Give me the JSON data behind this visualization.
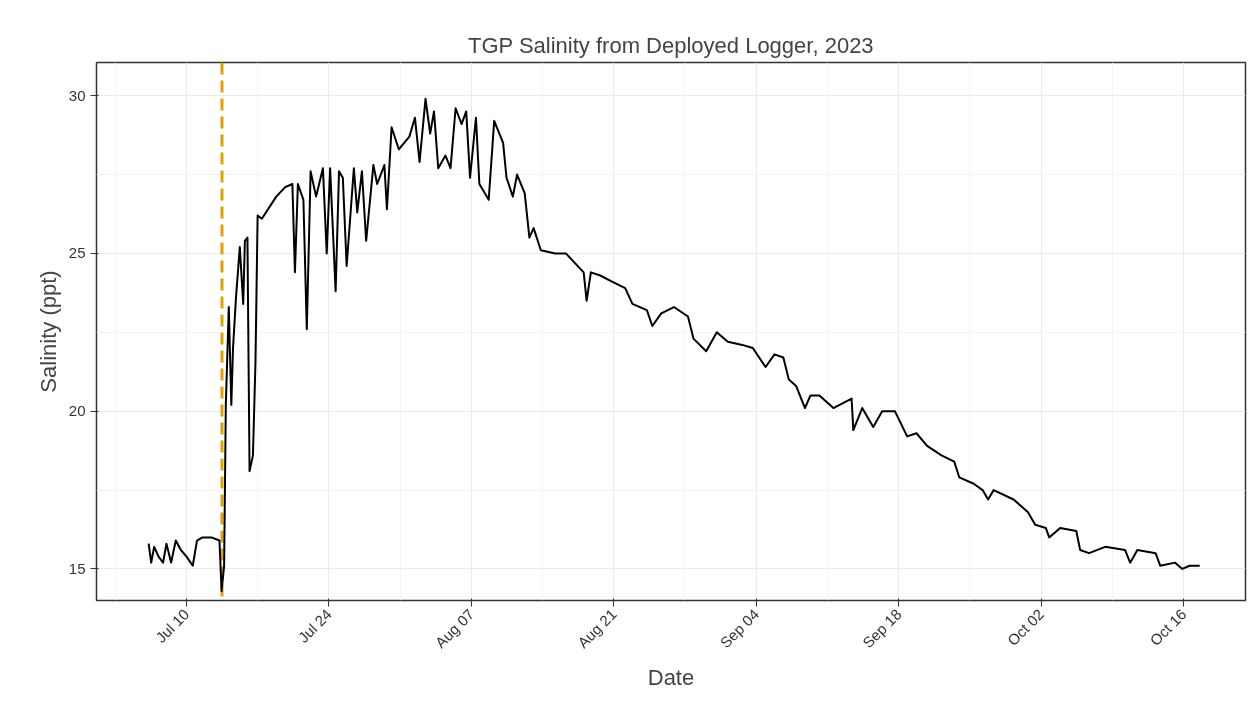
{
  "chart_data": {
    "type": "line",
    "title": "TGP Salinity from Deployed Logger, 2023",
    "xlabel": "Date",
    "ylabel": "Salinity (ppt)",
    "x": [
      "2023-07-06T07:00",
      "2023-07-06T13:00",
      "2023-07-06T20:00",
      "2023-07-07T06:00",
      "2023-07-07T17:00",
      "2023-07-08T01:00",
      "2023-07-08T12:00",
      "2023-07-08T23:00",
      "2023-07-09T11:00",
      "2023-07-10T00:00",
      "2023-07-10T15:00",
      "2023-07-11T01:00",
      "2023-07-11T14:00",
      "2023-07-12T11:00",
      "2023-07-13T06:00",
      "2023-07-13T11:00",
      "2023-07-13T17:00",
      "2023-07-13T21:00",
      "2023-07-14T04:00",
      "2023-07-14T10:00",
      "2023-07-14T14:00",
      "2023-07-14T21:00",
      "2023-07-15T06:00",
      "2023-07-15T14:00",
      "2023-07-15T18:00",
      "2023-07-16T00:00",
      "2023-07-16T05:00",
      "2023-07-16T13:00",
      "2023-07-16T19:00",
      "2023-07-17T00:00",
      "2023-07-17T10:00",
      "2023-07-18T20:00",
      "2023-07-19T17:00",
      "2023-07-20T10:00",
      "2023-07-20T16:00",
      "2023-07-20T23:00",
      "2023-07-21T12:00",
      "2023-07-21T20:00",
      "2023-07-22T05:00",
      "2023-07-22T18:00",
      "2023-07-23T10:00",
      "2023-07-23T19:00",
      "2023-07-24T03:00",
      "2023-07-24T16:00",
      "2023-07-25T00:00",
      "2023-07-25T09:00",
      "2023-07-25T18:00",
      "2023-07-26T11:00",
      "2023-07-26T19:00",
      "2023-07-27T06:00",
      "2023-07-27T16:00",
      "2023-07-28T09:00",
      "2023-07-28T18:00",
      "2023-07-29T11:00",
      "2023-07-29T17:00",
      "2023-07-30T04:00",
      "2023-07-30T21:00",
      "2023-07-31T22:00",
      "2023-08-01T11:00",
      "2023-08-01T22:00",
      "2023-08-02T12:00",
      "2023-08-02T23:00",
      "2023-08-03T08:00",
      "2023-08-03T18:00",
      "2023-08-04T11:00",
      "2023-08-04T23:00",
      "2023-08-05T11:00",
      "2023-08-06T01:00",
      "2023-08-06T12:00",
      "2023-08-06T21:00",
      "2023-08-07T11:00",
      "2023-08-07T19:00",
      "2023-08-08T17:00",
      "2023-08-09T06:00",
      "2023-08-10T03:00",
      "2023-08-10T11:00",
      "2023-08-11T02:00",
      "2023-08-11T12:00",
      "2023-08-12T06:00",
      "2023-08-12T17:00",
      "2023-08-13T03:00",
      "2023-08-13T20:00",
      "2023-08-15T06:00",
      "2023-08-16T07:00",
      "2023-08-17T04:00",
      "2023-08-18T01:00",
      "2023-08-18T08:00",
      "2023-08-18T18:00",
      "2023-08-19T16:00",
      "2023-08-20T21:00",
      "2023-08-22T03:00",
      "2023-08-22T20:00",
      "2023-08-24T06:00",
      "2023-08-24T19:00",
      "2023-08-25T16:00",
      "2023-08-26T22:00",
      "2023-08-28T07:00",
      "2023-08-28T20:00",
      "2023-08-30T02:00",
      "2023-08-31T03:00",
      "2023-09-01T05:00",
      "2023-09-02T15:00",
      "2023-09-03T16:00",
      "2023-09-04T22:00",
      "2023-09-05T19:00",
      "2023-09-06T16:00",
      "2023-09-07T05:00",
      "2023-09-07T22:00",
      "2023-09-08T19:00",
      "2023-09-09T08:00",
      "2023-09-10T05:00",
      "2023-09-11T14:00",
      "2023-09-13T09:00",
      "2023-09-13T13:00",
      "2023-09-14T10:00",
      "2023-09-15T12:00",
      "2023-09-16T09:00",
      "2023-09-17T15:00",
      "2023-09-18T20:00",
      "2023-09-19T18:00",
      "2023-09-20T19:00",
      "2023-09-22T05:00",
      "2023-09-23T11:00",
      "2023-09-23T23:00",
      "2023-09-25T09:00",
      "2023-09-26T06:00",
      "2023-09-26T19:00",
      "2023-09-27T08:00",
      "2023-09-29T07:00",
      "2023-09-30T17:00",
      "2023-10-01T10:00",
      "2023-10-02T11:00",
      "2023-10-02T19:00",
      "2023-10-03T21:00",
      "2023-10-05T11:00",
      "2023-10-05T20:00",
      "2023-10-06T17:00",
      "2023-10-08T07:00",
      "2023-10-10T06:00",
      "2023-10-10T18:00",
      "2023-10-11T11:00",
      "2023-10-13T06:00",
      "2023-10-13T17:00",
      "2023-10-15T04:00",
      "2023-10-15T21:00",
      "2023-10-16T14:00",
      "2023-10-17T14:00"
    ],
    "series": [
      {
        "color": "#000000",
        "values": [
          15.8,
          15.2,
          15.7,
          15.4,
          15.2,
          15.8,
          15.2,
          15.9,
          15.6,
          15.4,
          15.1,
          15.9,
          16.0,
          16.0,
          15.9,
          14.3,
          15.1,
          20.2,
          23.3,
          20.2,
          22.0,
          23.6,
          25.2,
          23.4,
          25.4,
          25.5,
          18.1,
          18.6,
          21.6,
          26.2,
          26.1,
          26.8,
          27.1,
          27.2,
          24.4,
          27.2,
          26.7,
          22.6,
          27.6,
          26.8,
          27.7,
          25.0,
          27.7,
          23.8,
          27.6,
          27.4,
          24.6,
          27.7,
          26.3,
          27.6,
          25.4,
          27.8,
          27.2,
          27.8,
          26.4,
          29.0,
          28.3,
          28.7,
          29.3,
          27.9,
          29.9,
          28.8,
          29.5,
          27.7,
          28.1,
          27.7,
          29.6,
          29.1,
          29.5,
          27.4,
          29.3,
          27.2,
          26.7,
          29.2,
          28.5,
          27.4,
          26.8,
          27.5,
          26.9,
          25.5,
          25.8,
          25.1,
          25.0,
          25.0,
          24.7,
          24.4,
          23.5,
          24.4,
          24.3,
          24.1,
          23.9,
          23.4,
          23.2,
          22.7,
          23.1,
          23.3,
          23.0,
          22.3,
          21.9,
          22.5,
          22.2,
          22.1,
          22.0,
          21.4,
          21.8,
          21.7,
          21.0,
          20.8,
          20.1,
          20.5,
          20.5,
          20.1,
          20.4,
          19.4,
          20.1,
          19.5,
          20.0,
          20.0,
          19.2,
          19.3,
          18.9,
          18.6,
          18.4,
          17.9,
          17.7,
          17.5,
          17.2,
          17.5,
          17.2,
          16.8,
          16.4,
          16.3,
          16.0,
          16.3,
          16.2,
          15.6,
          15.5,
          15.7,
          15.6,
          15.2,
          15.6,
          15.5,
          15.1,
          15.2,
          15.0,
          15.1,
          15.1
        ]
      }
    ],
    "xlim": [
      "2023-07-01T04:00",
      "2023-10-22T02:00"
    ],
    "ylim": [
      14,
      31.05
    ],
    "xticks": [
      {
        "value": "2023-07-10",
        "label": "Jul 10"
      },
      {
        "value": "2023-07-24",
        "label": "Jul 24"
      },
      {
        "value": "2023-08-07",
        "label": "Aug 07"
      },
      {
        "value": "2023-08-21",
        "label": "Aug 21"
      },
      {
        "value": "2023-09-04",
        "label": "Sep 04"
      },
      {
        "value": "2023-09-18",
        "label": "Sep 18"
      },
      {
        "value": "2023-10-02",
        "label": "Oct 02"
      },
      {
        "value": "2023-10-16",
        "label": "Oct 16"
      }
    ],
    "yticks": [
      15,
      20,
      25,
      30
    ],
    "ref_lines": [
      {
        "axis": "x",
        "value": "2023-07-13T12:00",
        "color": "#e69f00",
        "line_style": "dashed"
      }
    ],
    "grid": true,
    "line_style": "solid"
  }
}
